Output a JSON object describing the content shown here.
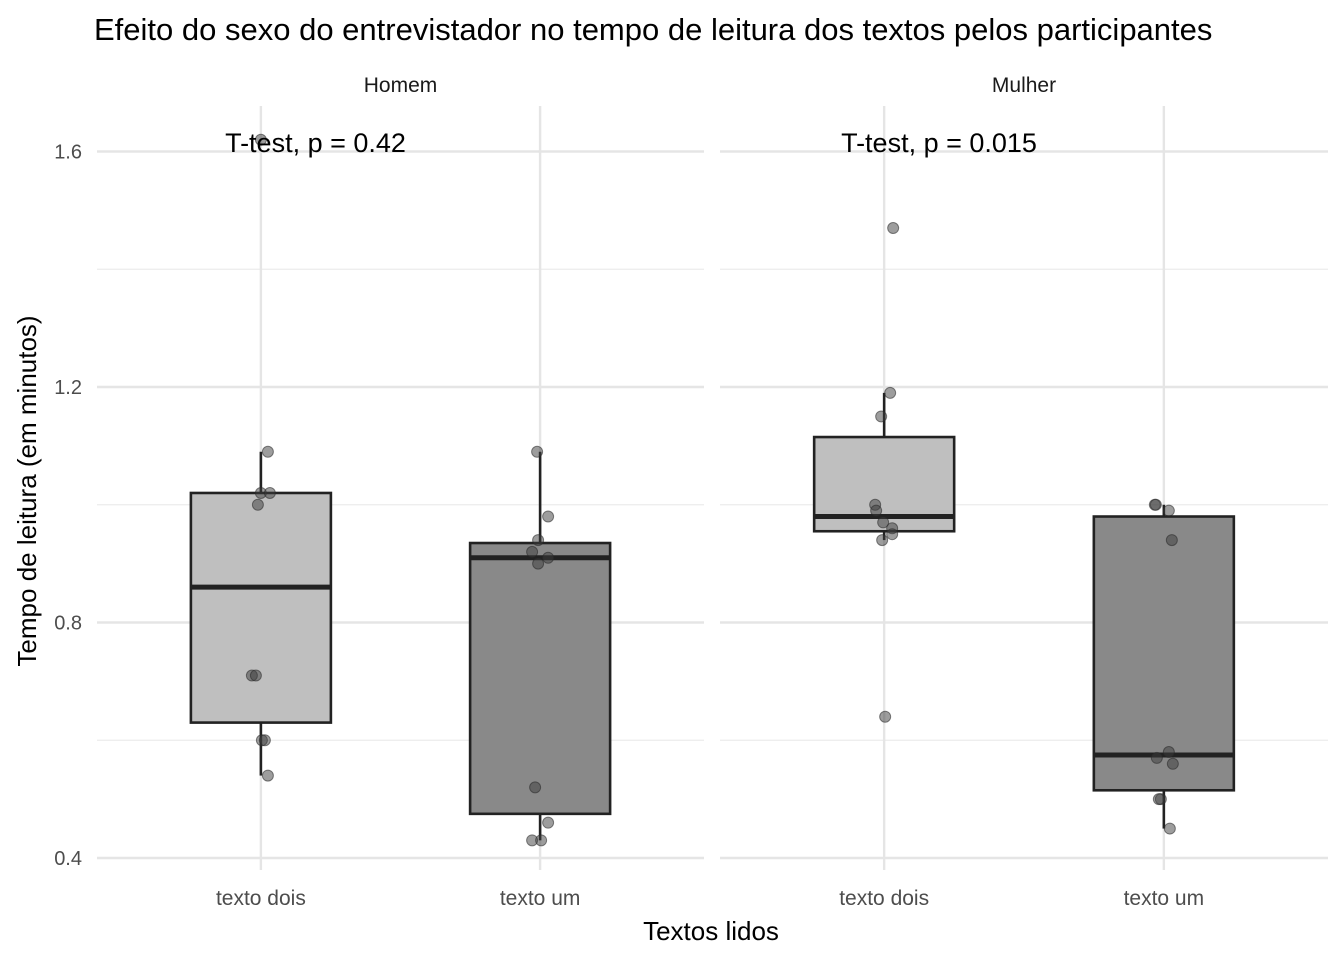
{
  "chart_data": {
    "type": "boxplot",
    "title": "Efeito do sexo do entrevistador no tempo de leitura dos textos pelos participantes",
    "xlabel": "Textos lidos",
    "ylabel": "Tempo de leitura (em minutos)",
    "ylim": [
      0.38,
      1.69
    ],
    "yticks": [
      0.4,
      0.8,
      1.2,
      1.6
    ],
    "categories": [
      "texto dois",
      "texto um"
    ],
    "grid": true,
    "legend": "none",
    "fill_colors": {
      "texto dois": "#bfbfbf",
      "texto um": "#898989"
    },
    "panels": [
      {
        "facet": "Homem",
        "annotation": "T-test, p = 0.42",
        "boxes": [
          {
            "category": "texto dois",
            "min": 0.54,
            "q1": 0.63,
            "median": 0.86,
            "q3": 1.02,
            "max": 1.09
          },
          {
            "category": "texto um",
            "min": 0.43,
            "q1": 0.475,
            "median": 0.91,
            "q3": 0.935,
            "max": 1.09
          }
        ],
        "points": [
          {
            "category": "texto dois",
            "jitter": 0.0,
            "y": 1.62
          },
          {
            "category": "texto dois",
            "jitter": 0.07,
            "y": 1.09
          },
          {
            "category": "texto dois",
            "jitter": 0.0,
            "y": 1.02
          },
          {
            "category": "texto dois",
            "jitter": 0.09,
            "y": 1.02
          },
          {
            "category": "texto dois",
            "jitter": -0.03,
            "y": 1.0
          },
          {
            "category": "texto dois",
            "jitter": -0.09,
            "y": 0.71
          },
          {
            "category": "texto dois",
            "jitter": -0.05,
            "y": 0.71
          },
          {
            "category": "texto dois",
            "jitter": 0.01,
            "y": 0.6
          },
          {
            "category": "texto dois",
            "jitter": 0.04,
            "y": 0.6
          },
          {
            "category": "texto dois",
            "jitter": 0.07,
            "y": 0.54
          },
          {
            "category": "texto um",
            "jitter": -0.03,
            "y": 1.09
          },
          {
            "category": "texto um",
            "jitter": 0.08,
            "y": 0.98
          },
          {
            "category": "texto um",
            "jitter": -0.02,
            "y": 0.94
          },
          {
            "category": "texto um",
            "jitter": -0.08,
            "y": 0.92
          },
          {
            "category": "texto um",
            "jitter": 0.08,
            "y": 0.91
          },
          {
            "category": "texto um",
            "jitter": -0.02,
            "y": 0.9
          },
          {
            "category": "texto um",
            "jitter": -0.05,
            "y": 0.52
          },
          {
            "category": "texto um",
            "jitter": 0.08,
            "y": 0.46
          },
          {
            "category": "texto um",
            "jitter": -0.08,
            "y": 0.43
          },
          {
            "category": "texto um",
            "jitter": 0.01,
            "y": 0.43
          }
        ]
      },
      {
        "facet": "Mulher",
        "annotation": "T-test, p = 0.015",
        "boxes": [
          {
            "category": "texto dois",
            "min": 0.94,
            "q1": 0.955,
            "median": 0.98,
            "q3": 1.115,
            "max": 1.19
          },
          {
            "category": "texto um",
            "min": 0.45,
            "q1": 0.515,
            "median": 0.575,
            "q3": 0.98,
            "max": 1.0
          }
        ],
        "points": [
          {
            "category": "texto dois",
            "jitter": 0.09,
            "y": 1.47
          },
          {
            "category": "texto dois",
            "jitter": 0.06,
            "y": 1.19
          },
          {
            "category": "texto dois",
            "jitter": -0.03,
            "y": 1.15
          },
          {
            "category": "texto dois",
            "jitter": -0.09,
            "y": 1.0
          },
          {
            "category": "texto dois",
            "jitter": -0.08,
            "y": 0.99
          },
          {
            "category": "texto dois",
            "jitter": -0.01,
            "y": 0.97
          },
          {
            "category": "texto dois",
            "jitter": 0.08,
            "y": 0.96
          },
          {
            "category": "texto dois",
            "jitter": 0.08,
            "y": 0.95
          },
          {
            "category": "texto dois",
            "jitter": -0.02,
            "y": 0.94
          },
          {
            "category": "texto dois",
            "jitter": 0.01,
            "y": 0.64
          },
          {
            "category": "texto um",
            "jitter": -0.09,
            "y": 1.0
          },
          {
            "category": "texto um",
            "jitter": -0.08,
            "y": 1.0
          },
          {
            "category": "texto um",
            "jitter": 0.05,
            "y": 0.99
          },
          {
            "category": "texto um",
            "jitter": 0.08,
            "y": 0.94
          },
          {
            "category": "texto um",
            "jitter": 0.05,
            "y": 0.58
          },
          {
            "category": "texto um",
            "jitter": -0.07,
            "y": 0.57
          },
          {
            "category": "texto um",
            "jitter": 0.09,
            "y": 0.56
          },
          {
            "category": "texto um",
            "jitter": -0.03,
            "y": 0.5
          },
          {
            "category": "texto um",
            "jitter": -0.05,
            "y": 0.5
          },
          {
            "category": "texto um",
            "jitter": 0.06,
            "y": 0.45
          }
        ]
      }
    ]
  }
}
